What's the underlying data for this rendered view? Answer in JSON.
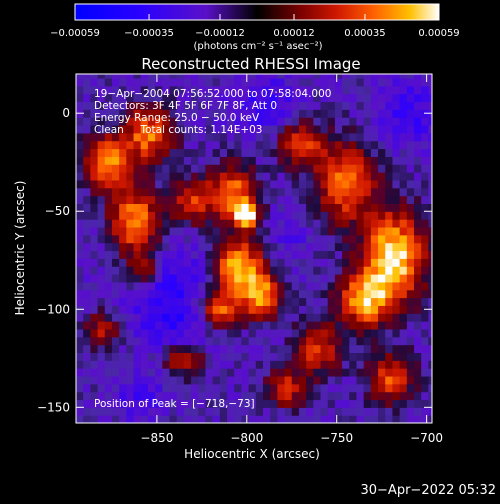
{
  "chart_data": {
    "type": "heatmap",
    "title": "Reconstructed RHESSI Image",
    "xlabel": "Heliocentric X (arcsec)",
    "ylabel": "Heliocentric Y (arcsec)",
    "xlim": [
      -895,
      -697
    ],
    "ylim": [
      -158,
      20
    ],
    "x_ticks": [
      -850,
      -800,
      -750,
      -700
    ],
    "x_tick_labels": [
      "−850",
      "−800",
      "−750",
      "−700"
    ],
    "y_ticks": [
      0,
      -50,
      -100,
      -150
    ],
    "y_tick_labels": [
      "0",
      "−50",
      "−100",
      "−150"
    ],
    "colorbar": {
      "min": -0.00059,
      "max": 0.00059,
      "ticks": [
        -0.00059,
        -0.00035,
        -0.00012,
        0.00012,
        0.00035,
        0.00059
      ],
      "tick_labels": [
        "−0.00059",
        "−0.00035",
        "−0.00012",
        "0.00012",
        "0.00035",
        "0.00059"
      ],
      "unit_label": "(photons cm⁻² s⁻¹ asec⁻²)"
    },
    "info_lines": [
      "19−Apr−2004 07:56:52.000 to 07:58:04.000",
      "Detectors: 3F 4F 5F 6F 7F 8F, Att 0",
      "Energy Range: 25.0 − 50.0 keV",
      "Clean     Total counts: 1.14E+03"
    ],
    "peak_label": "Position of Peak = [−718,−73]",
    "blobs": [
      {
        "x": -878,
        "y": -25,
        "sx": 9,
        "sy": 9,
        "amp": 0.00045
      },
      {
        "x": -855,
        "y": -10,
        "sx": 10,
        "sy": 10,
        "amp": 0.0004
      },
      {
        "x": -862,
        "y": -55,
        "sx": 10,
        "sy": 12,
        "amp": 0.00045
      },
      {
        "x": -830,
        "y": -45,
        "sx": 8,
        "sy": 8,
        "amp": 0.0003
      },
      {
        "x": -858,
        "y": -80,
        "sx": 7,
        "sy": 6,
        "amp": 0.0003
      },
      {
        "x": -808,
        "y": -40,
        "sx": 9,
        "sy": 10,
        "amp": 0.0004
      },
      {
        "x": -800,
        "y": -52,
        "sx": 5,
        "sy": 5,
        "amp": 0.0005
      },
      {
        "x": -805,
        "y": -78,
        "sx": 10,
        "sy": 10,
        "amp": 0.0005
      },
      {
        "x": -792,
        "y": -93,
        "sx": 8,
        "sy": 8,
        "amp": 0.00042
      },
      {
        "x": -815,
        "y": -100,
        "sx": 8,
        "sy": 7,
        "amp": 0.00035
      },
      {
        "x": -835,
        "y": -125,
        "sx": 8,
        "sy": 6,
        "amp": 0.0003
      },
      {
        "x": -745,
        "y": -35,
        "sx": 12,
        "sy": 14,
        "amp": 0.0004
      },
      {
        "x": -770,
        "y": -15,
        "sx": 9,
        "sy": 8,
        "amp": 0.00032
      },
      {
        "x": -718,
        "y": -73,
        "sx": 12,
        "sy": 16,
        "amp": 0.00058
      },
      {
        "x": -735,
        "y": -95,
        "sx": 10,
        "sy": 10,
        "amp": 0.00045
      },
      {
        "x": -760,
        "y": -120,
        "sx": 9,
        "sy": 9,
        "amp": 0.0003
      },
      {
        "x": -720,
        "y": -135,
        "sx": 9,
        "sy": 9,
        "amp": 0.00032
      },
      {
        "x": -778,
        "y": -140,
        "sx": 8,
        "sy": 7,
        "amp": 0.00025
      },
      {
        "x": -880,
        "y": -110,
        "sx": 7,
        "sy": 7,
        "amp": 0.0002
      },
      {
        "x": -845,
        "y": -85,
        "sx": 18,
        "sy": 14,
        "amp": -0.00022
      },
      {
        "x": -840,
        "y": -110,
        "sx": 14,
        "sy": 12,
        "amp": -0.00018
      },
      {
        "x": -790,
        "y": 5,
        "sx": 14,
        "sy": 10,
        "amp": -0.0002
      },
      {
        "x": -710,
        "y": 0,
        "sx": 12,
        "sy": 12,
        "amp": -0.0002
      },
      {
        "x": -775,
        "y": -60,
        "sx": 8,
        "sy": 8,
        "amp": -0.00012
      },
      {
        "x": -860,
        "y": -145,
        "sx": 10,
        "sy": 8,
        "amp": -0.00015
      }
    ]
  },
  "timestamp": "30−Apr−2022 05:32"
}
